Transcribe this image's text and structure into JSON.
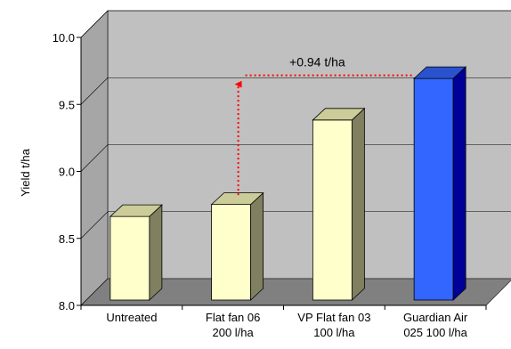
{
  "chart_data": {
    "type": "bar",
    "title": "",
    "xlabel": "",
    "ylabel": "Yield t/ha",
    "ylim": [
      8.0,
      10.0
    ],
    "yticks": [
      "8.0",
      "8.5",
      "9.0",
      "9.5",
      "10.0"
    ],
    "grid": true,
    "three_d": true,
    "categories": [
      [
        "Untreated"
      ],
      [
        "Flat fan 06",
        "200 l/ha"
      ],
      [
        "VP Flat fan 03",
        "100 l/ha"
      ],
      [
        "Guardian Air",
        "025 100 l/ha"
      ]
    ],
    "values": [
      8.69,
      8.78,
      9.41,
      9.72
    ],
    "bar_colors": [
      "#ffffcc",
      "#ffffcc",
      "#ffffcc",
      "#3366ff"
    ],
    "annotation": {
      "text": "+0.94 t/ha",
      "from_category": 1,
      "to_category": 3,
      "color": "#ff0000"
    },
    "colors": {
      "back_wall": "#c0c0c0",
      "side_wall": "#a6a6a6",
      "floor": "#808080"
    }
  }
}
